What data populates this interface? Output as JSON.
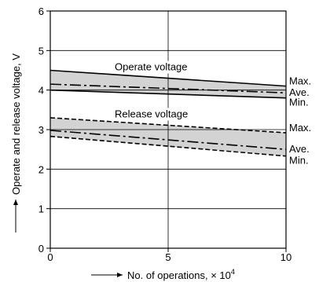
{
  "chart_data": {
    "type": "line",
    "title": "",
    "xlabel": "No. of operations, × 10",
    "xlabel_exponent": "4",
    "ylabel": "Operate and release voltage, V",
    "xlim": [
      0,
      10
    ],
    "ylim": [
      0,
      6
    ],
    "x_ticks": [
      "0",
      "5",
      "10"
    ],
    "y_ticks": [
      "0",
      "1",
      "2",
      "3",
      "4",
      "5",
      "6"
    ],
    "grid": true,
    "colors": {
      "band": "#d3d3d3",
      "line": "#000000"
    },
    "bands": [
      {
        "label": "Operate voltage",
        "series": [
          {
            "name": "Max.",
            "style": "solid",
            "x": [
              0,
              10
            ],
            "y": [
              4.5,
              4.1
            ]
          },
          {
            "name": "Ave.",
            "style": "dash-dot",
            "x": [
              0,
              10
            ],
            "y": [
              4.15,
              3.93
            ]
          },
          {
            "name": "Min.",
            "style": "solid",
            "x": [
              0,
              10
            ],
            "y": [
              4.0,
              3.8
            ]
          }
        ]
      },
      {
        "label": "Release voltage",
        "series": [
          {
            "name": "Max.",
            "style": "dashed",
            "x": [
              0,
              10
            ],
            "y": [
              3.3,
              2.92
            ]
          },
          {
            "name": "Ave.",
            "style": "dash-dot",
            "x": [
              0,
              10
            ],
            "y": [
              2.98,
              2.5
            ]
          },
          {
            "name": "Min.",
            "style": "dashed",
            "x": [
              0,
              10
            ],
            "y": [
              2.83,
              2.33
            ]
          }
        ]
      }
    ]
  }
}
